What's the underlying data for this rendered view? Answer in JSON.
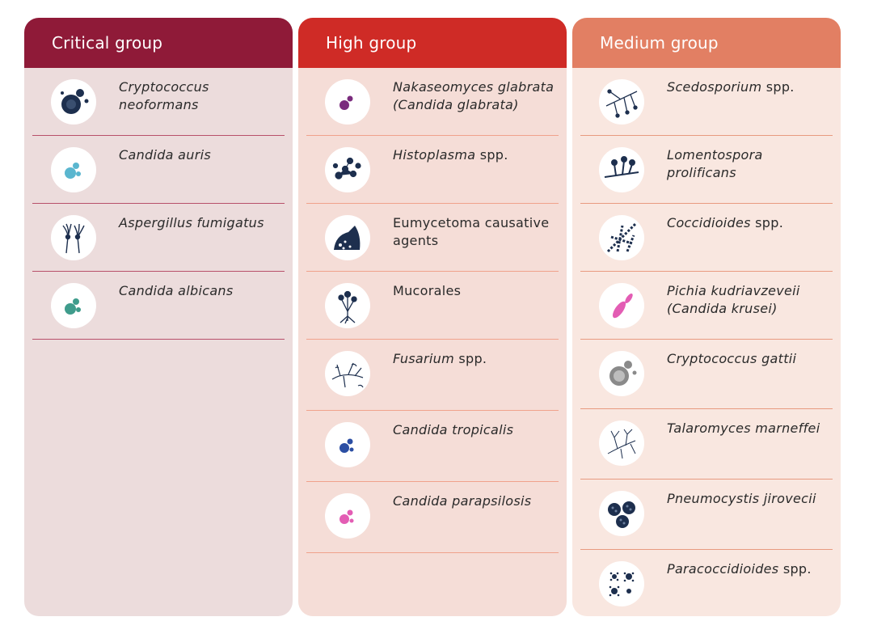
{
  "columns": [
    {
      "title": "Critical group",
      "items": [
        {
          "italic": "Cryptococcus neoformans",
          "suffix": "",
          "icon": "cryptococcus-cell-icon"
        },
        {
          "italic": "Candida auris",
          "suffix": "",
          "icon": "yeast-cell-icon"
        },
        {
          "italic": "Aspergillus fumigatus",
          "suffix": "",
          "icon": "mold-spores-icon"
        },
        {
          "italic": "Candida albicans",
          "suffix": "",
          "icon": "yeast-cell-icon"
        }
      ]
    },
    {
      "title": "High group",
      "items": [
        {
          "italic": "Nakaseomyces glabrata (Candida glabrata)",
          "suffix": "",
          "icon": "yeast-cell-icon"
        },
        {
          "italic": "Histoplasma",
          "suffix": " spp.",
          "icon": "star-cells-icon"
        },
        {
          "italic": "",
          "suffix": "Eumycetoma causative agents",
          "icon": "granule-icon"
        },
        {
          "italic": "",
          "suffix": "Mucorales",
          "icon": "sporangium-icon"
        },
        {
          "italic": "Fusarium",
          "suffix": " spp.",
          "icon": "hyphae-icon"
        },
        {
          "italic": "Candida tropicalis",
          "suffix": "",
          "icon": "yeast-cell-icon"
        },
        {
          "italic": "Candida parapsilosis",
          "suffix": "",
          "icon": "yeast-cell-icon"
        }
      ]
    },
    {
      "title": "Medium group",
      "items": [
        {
          "italic": "Scedosporium",
          "suffix": " spp.",
          "icon": "branching-hyphae-icon"
        },
        {
          "italic": "Lomentospora prolificans",
          "suffix": "",
          "icon": "conidiophore-icon"
        },
        {
          "italic": "Coccidioides",
          "suffix": " spp.",
          "icon": "arthroconidia-icon"
        },
        {
          "italic": "Pichia kudriavzeveii (Candida krusei)",
          "suffix": "",
          "icon": "elongated-cell-icon"
        },
        {
          "italic": "Cryptococcus gattii",
          "suffix": "",
          "icon": "cryptococcus-cell-icon"
        },
        {
          "italic": "Talaromyces marneffei",
          "suffix": "",
          "icon": "tree-hyphae-icon"
        },
        {
          "italic": "Pneumocystis jirovecii",
          "suffix": "",
          "icon": "cyst-cluster-icon"
        },
        {
          "italic": "Paracoccidioides",
          "suffix": " spp.",
          "icon": "pilot-wheel-icon"
        }
      ]
    }
  ],
  "colors": {
    "critical_header": "#8f1a38",
    "high_header": "#cf2b26",
    "medium_header": "#e27f63",
    "cyan": "#5ab6cf",
    "teal": "#3f9c8c",
    "purple": "#7a2b7d",
    "navy": "#1d2f4e",
    "blue": "#2b4ea3",
    "pink": "#e35db4",
    "gray": "#8a8a8a"
  }
}
